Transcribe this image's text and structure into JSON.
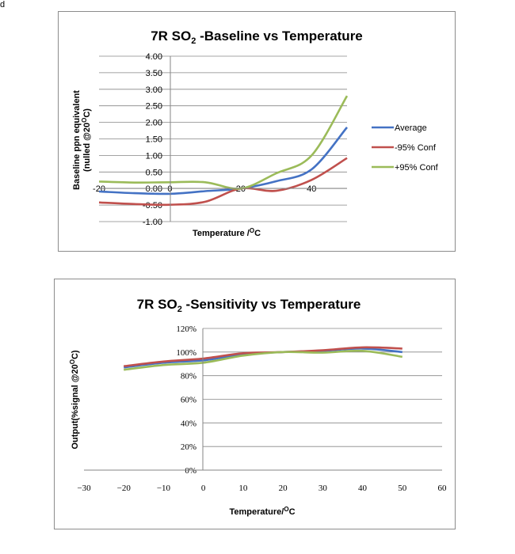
{
  "corner_mark": "d",
  "chart_data": [
    {
      "type": "line",
      "title": "7R SO",
      "title_sub": "2",
      "title_rest": " -Baseline vs Temperature",
      "xlabel": "Temperature /",
      "xlabel_sup": "O",
      "xlabel_rest": "C",
      "ylabel": "Baseline ppn equivalent",
      "ylabel2": "(nulled @20",
      "ylabel2_sup": "O",
      "ylabel2_rest": "C)",
      "xlim": [
        -20,
        50
      ],
      "ylim": [
        -1.0,
        4.0
      ],
      "yticks": [
        "4.00",
        "3.50",
        "3.00",
        "2.50",
        "2.00",
        "1.50",
        "1.00",
        "0.50",
        "0.00",
        "-0.50",
        "-1.00"
      ],
      "ytick_values": [
        4.0,
        3.5,
        3.0,
        2.5,
        2.0,
        1.5,
        1.0,
        0.5,
        0.0,
        -0.5,
        -1.0
      ],
      "xticks": [
        "-20",
        "0",
        "20",
        "40"
      ],
      "xtick_values": [
        -20,
        0,
        20,
        40
      ],
      "grid": true,
      "legend": "right",
      "series": [
        {
          "name": "Average",
          "color": "#4472c4",
          "x": [
            -20,
            -10,
            0,
            10,
            20,
            30,
            40,
            50
          ],
          "y": [
            -0.09,
            -0.14,
            -0.16,
            -0.08,
            0.0,
            0.22,
            0.58,
            1.85
          ]
        },
        {
          "name": "-95% Conf",
          "color": "#c0504d",
          "x": [
            -20,
            -10,
            0,
            10,
            20,
            30,
            40,
            50
          ],
          "y": [
            -0.42,
            -0.47,
            -0.49,
            -0.4,
            0.0,
            -0.07,
            0.26,
            0.92
          ]
        },
        {
          "name": "+95% Conf",
          "color": "#9bbb59",
          "x": [
            -20,
            -10,
            0,
            10,
            20,
            30,
            40,
            50
          ],
          "y": [
            0.21,
            0.18,
            0.19,
            0.19,
            0.0,
            0.46,
            1.0,
            2.8
          ]
        }
      ]
    },
    {
      "type": "line",
      "title": "7R SO",
      "title_sub": "2",
      "title_rest": " -Sensitivity vs Temperature",
      "xlabel": "Temperature/",
      "xlabel_sup": "O",
      "xlabel_rest": "C",
      "ylabel": "Output(%signal @20",
      "ylabel_sup": "O",
      "ylabel_rest": "C)",
      "xlim": [
        -30,
        60
      ],
      "ylim": [
        0,
        120
      ],
      "yticks": [
        "120%",
        "100%",
        "80%",
        "60%",
        "40%",
        "20%",
        "0%"
      ],
      "ytick_values": [
        120,
        100,
        80,
        60,
        40,
        20,
        0
      ],
      "xticks": [
        "−30",
        "−20",
        "−10",
        "0",
        "10",
        "20",
        "30",
        "40",
        "50",
        "60"
      ],
      "xtick_values": [
        -30,
        -20,
        -10,
        0,
        10,
        20,
        30,
        40,
        50,
        60
      ],
      "grid": true,
      "series": [
        {
          "name": "Average",
          "color": "#4472c4",
          "x": [
            -20,
            -10,
            0,
            10,
            20,
            30,
            40,
            50
          ],
          "y": [
            87,
            91,
            93,
            98,
            100,
            101,
            103,
            100
          ]
        },
        {
          "name": "-95% Conf",
          "color": "#c0504d",
          "x": [
            -20,
            -10,
            0,
            10,
            20,
            30,
            40,
            50
          ],
          "y": [
            88,
            92,
            94.5,
            99,
            100,
            101.5,
            104,
            103
          ]
        },
        {
          "name": "+95% Conf",
          "color": "#9bbb59",
          "x": [
            -20,
            -10,
            0,
            10,
            20,
            30,
            40,
            50
          ],
          "y": [
            85,
            89,
            91,
            97,
            100,
            99.5,
            101,
            96
          ]
        }
      ]
    }
  ]
}
